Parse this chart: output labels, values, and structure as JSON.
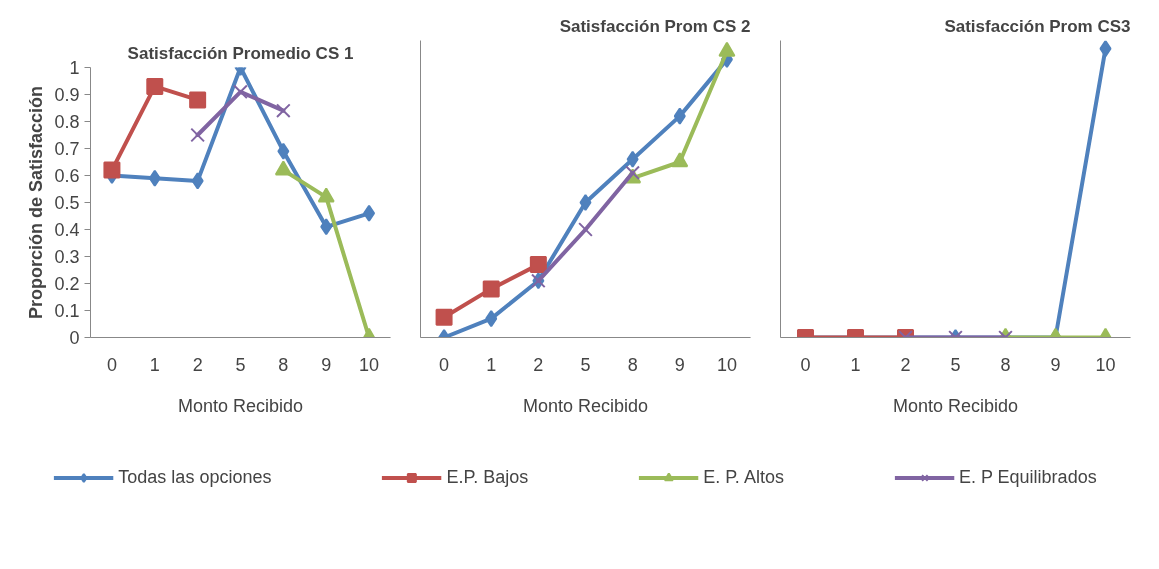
{
  "chart_data": [
    {
      "type": "line",
      "title": "Satisfacción Promedio CS 1",
      "xlabel": "Monto Recibido",
      "ylabel": "Proporción de Satisfacción",
      "categories": [
        "0",
        "1",
        "2",
        "5",
        "8",
        "9",
        "10"
      ],
      "ylim": [
        0,
        1
      ],
      "yticks": [
        0,
        0.1,
        0.2,
        0.3,
        0.4,
        0.5,
        0.6,
        0.7,
        0.8,
        0.9,
        1
      ],
      "grid": false,
      "legend": "bottom",
      "series": [
        {
          "name": "Todas las opciones",
          "color": "#4f81bd",
          "marker": "diamond",
          "values": [
            0.6,
            0.59,
            0.58,
            1.0,
            0.69,
            0.41,
            0.46
          ]
        },
        {
          "name": "E.P. Bajos",
          "color": "#c0504d",
          "marker": "square",
          "values": [
            0.62,
            0.93,
            0.88,
            null,
            null,
            null,
            null
          ]
        },
        {
          "name": "E. P. Altos",
          "color": "#9bbb59",
          "marker": "triangle",
          "values": [
            null,
            null,
            null,
            null,
            0.62,
            0.52,
            0.0
          ]
        },
        {
          "name": "E. P Equilibrados",
          "color": "#8064a2",
          "marker": "cross",
          "values": [
            null,
            null,
            0.75,
            0.91,
            0.84,
            null,
            null
          ]
        }
      ]
    },
    {
      "type": "line",
      "title": "Satisfacción Prom CS 2",
      "xlabel": "Monto Recibido",
      "categories": [
        "0",
        "1",
        "2",
        "5",
        "8",
        "9",
        "10"
      ],
      "ylim": [
        0,
        1.1
      ],
      "yticks": [
        0,
        0.1,
        0.2,
        0.3,
        0.4,
        0.5,
        0.6,
        0.7,
        0.8,
        0.9,
        1
      ],
      "tick_labels": "x",
      "grid": false,
      "series": [
        {
          "color": "#4f81bd",
          "marker": "diamond",
          "values": [
            0.0,
            0.07,
            0.21,
            0.5,
            0.66,
            0.82,
            1.03
          ]
        },
        {
          "color": "#c0504d",
          "marker": "square",
          "values": [
            0.075,
            0.18,
            0.27,
            null,
            null,
            null,
            null
          ]
        },
        {
          "color": "#9bbb59",
          "marker": "triangle",
          "values": [
            null,
            null,
            null,
            null,
            0.59,
            0.65,
            1.06
          ]
        },
        {
          "color": "#8064a2",
          "marker": "cross",
          "values": [
            null,
            null,
            0.21,
            0.4,
            0.61,
            null,
            null
          ]
        }
      ]
    },
    {
      "type": "line",
      "title": "Satisfacción Prom CS3",
      "xlabel": "Monto Recibido",
      "categories": [
        "0",
        "1",
        "2",
        "5",
        "8",
        "9",
        "10"
      ],
      "ylim": [
        0,
        1.1
      ],
      "yticks": [
        0,
        0.1,
        0.2,
        0.3,
        0.4,
        0.5,
        0.6,
        0.7,
        0.8,
        0.9,
        1
      ],
      "tick_labels": "x",
      "grid": false,
      "series": [
        {
          "color": "#4f81bd",
          "marker": "diamond",
          "values": [
            0,
            0,
            0,
            0,
            0,
            0,
            1.07
          ]
        },
        {
          "color": "#c0504d",
          "marker": "square",
          "values": [
            0,
            0,
            0,
            null,
            null,
            null,
            null
          ]
        },
        {
          "color": "#9bbb59",
          "marker": "triangle",
          "values": [
            null,
            null,
            null,
            null,
            0,
            0,
            0
          ]
        },
        {
          "color": "#8064a2",
          "marker": "cross",
          "values": [
            null,
            null,
            0,
            0,
            0,
            null,
            null
          ]
        }
      ]
    }
  ]
}
